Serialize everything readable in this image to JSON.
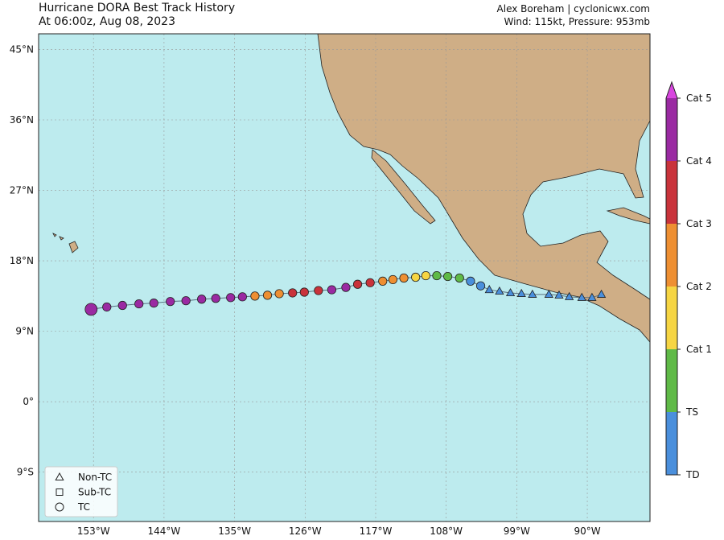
{
  "map": {
    "title": "Hurricane DORA Best Track History",
    "subtitle": "At 06:00z, Aug 08, 2023",
    "credit": "Alex Boreham | cyclonicwx.com",
    "status": "Wind: 115kt, Pressure: 953mb",
    "xlim": [
      -160,
      -82
    ],
    "ylim": [
      -15.3,
      47
    ],
    "xticks": [
      {
        "value": -153,
        "label": "153°W"
      },
      {
        "value": -144,
        "label": "144°W"
      },
      {
        "value": -135,
        "label": "135°W"
      },
      {
        "value": -126,
        "label": "126°W"
      },
      {
        "value": -117,
        "label": "117°W"
      },
      {
        "value": -108,
        "label": "108°W"
      },
      {
        "value": -99,
        "label": "99°W"
      },
      {
        "value": -90,
        "label": "90°W"
      }
    ],
    "yticks": [
      {
        "value": 45,
        "label": "45°N"
      },
      {
        "value": 36,
        "label": "36°N"
      },
      {
        "value": 27,
        "label": "27°N"
      },
      {
        "value": 18,
        "label": "18°N"
      },
      {
        "value": 9,
        "label": "9°N"
      },
      {
        "value": 0,
        "label": "0°"
      },
      {
        "value": -9,
        "label": "9°S"
      }
    ],
    "grid": true,
    "colorbar": [
      {
        "label": "TD",
        "color": "#4a8fdc"
      },
      {
        "label": "TS",
        "color": "#5fba47"
      },
      {
        "label": "Cat 1",
        "color": "#f6d543"
      },
      {
        "label": "Cat 2",
        "color": "#ee8f32"
      },
      {
        "label": "Cat 3",
        "color": "#c9333b"
      },
      {
        "label": "Cat 4",
        "color": "#9a2aa2"
      },
      {
        "label": "Cat 5",
        "color": "#d845df"
      }
    ],
    "legend": [
      {
        "shape": "triangle",
        "label": "Non-TC"
      },
      {
        "shape": "square",
        "label": "Sub-TC"
      },
      {
        "shape": "circle",
        "label": "TC"
      }
    ],
    "track": {
      "lon": [
        -88.2,
        -89.4,
        -90.7,
        -92.3,
        -93.6,
        -94.9,
        -97.0,
        -98.4,
        -99.8,
        -101.2,
        -102.5,
        -103.6,
        -104.9,
        -106.3,
        -107.8,
        -109.2,
        -110.6,
        -111.9,
        -113.4,
        -114.8,
        -116.1,
        -117.7,
        -119.3,
        -120.8,
        -122.6,
        -124.3,
        -126.1,
        -127.6,
        -129.3,
        -130.8,
        -132.4,
        -134.0,
        -135.5,
        -137.4,
        -139.2,
        -141.2,
        -143.2,
        -145.3,
        -147.2,
        -149.3,
        -151.3,
        -153.3
      ],
      "lat": [
        13.7,
        13.3,
        13.3,
        13.4,
        13.6,
        13.7,
        13.7,
        13.8,
        13.9,
        14.1,
        14.3,
        14.8,
        15.4,
        15.8,
        16.0,
        16.1,
        16.1,
        15.9,
        15.8,
        15.6,
        15.4,
        15.2,
        15.0,
        14.6,
        14.3,
        14.2,
        14.0,
        13.9,
        13.8,
        13.6,
        13.5,
        13.4,
        13.3,
        13.2,
        13.1,
        12.9,
        12.8,
        12.6,
        12.5,
        12.3,
        12.1,
        11.8
      ],
      "category": [
        "TD",
        "TD",
        "TD",
        "TD",
        "TD",
        "TD",
        "TD",
        "TD",
        "TD",
        "TD",
        "TD",
        "TD",
        "TD",
        "TS",
        "TS",
        "TS",
        "Cat 1",
        "Cat 1",
        "Cat 2",
        "Cat 2",
        "Cat 2",
        "Cat 3",
        "Cat 3",
        "Cat 4",
        "Cat 4",
        "Cat 3",
        "Cat 3",
        "Cat 3",
        "Cat 2",
        "Cat 2",
        "Cat 2",
        "Cat 4",
        "Cat 4",
        "Cat 4",
        "Cat 4",
        "Cat 4",
        "Cat 4",
        "Cat 4",
        "Cat 4",
        "Cat 4",
        "Cat 4",
        "Cat 4"
      ],
      "shape": [
        "triangle",
        "triangle",
        "triangle",
        "triangle",
        "triangle",
        "triangle",
        "triangle",
        "triangle",
        "triangle",
        "triangle",
        "triangle",
        "circle",
        "circle",
        "circle",
        "circle",
        "circle",
        "circle",
        "circle",
        "circle",
        "circle",
        "circle",
        "circle",
        "circle",
        "circle",
        "circle",
        "circle",
        "circle",
        "circle",
        "circle",
        "circle",
        "circle",
        "circle",
        "circle",
        "circle",
        "circle",
        "circle",
        "circle",
        "circle",
        "circle",
        "circle",
        "circle",
        "circle"
      ]
    }
  }
}
